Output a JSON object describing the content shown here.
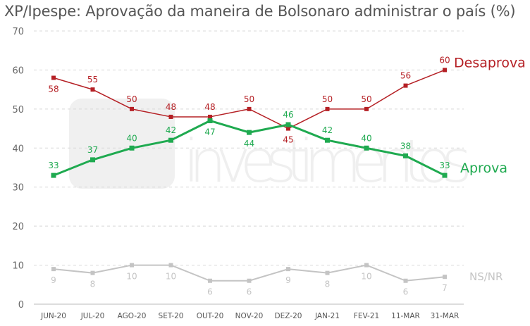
{
  "chart_data": {
    "type": "line",
    "title": "XP/Ipespe: Aprovação da maneira de Bolsonaro administrar o país (%)",
    "watermark": "xp investimentos",
    "categories": [
      "JUN-20",
      "JUL-20",
      "AGO-20",
      "SET-20",
      "OUT-20",
      "NOV-20",
      "DEZ-20",
      "JAN-21",
      "FEV-21",
      "11-MAR",
      "31-MAR"
    ],
    "y_ticks": [
      0,
      10,
      20,
      30,
      40,
      50,
      60,
      70
    ],
    "ylim": [
      0,
      70
    ],
    "grid": true,
    "series": [
      {
        "name": "Desaprova",
        "color": "#b52025",
        "values": [
          58,
          55,
          50,
          48,
          48,
          50,
          45,
          50,
          50,
          56,
          60
        ],
        "label_pos": [
          "below",
          "above",
          "above",
          "above",
          "above",
          "above",
          "below",
          "above",
          "above",
          "above",
          "above"
        ]
      },
      {
        "name": "Aprova",
        "color": "#1faa50",
        "values": [
          33,
          37,
          40,
          42,
          47,
          44,
          46,
          42,
          40,
          38,
          33
        ],
        "label_pos": [
          "above",
          "above",
          "above",
          "above",
          "below",
          "below",
          "above",
          "above",
          "above",
          "above",
          "above"
        ]
      },
      {
        "name": "NS/NR",
        "color": "#c4c4c4",
        "values": [
          9,
          8,
          10,
          10,
          6,
          6,
          9,
          8,
          10,
          6,
          7
        ],
        "label_pos": [
          "below",
          "below",
          "below",
          "below",
          "below",
          "below",
          "below",
          "below",
          "below",
          "below",
          "below"
        ]
      }
    ]
  }
}
